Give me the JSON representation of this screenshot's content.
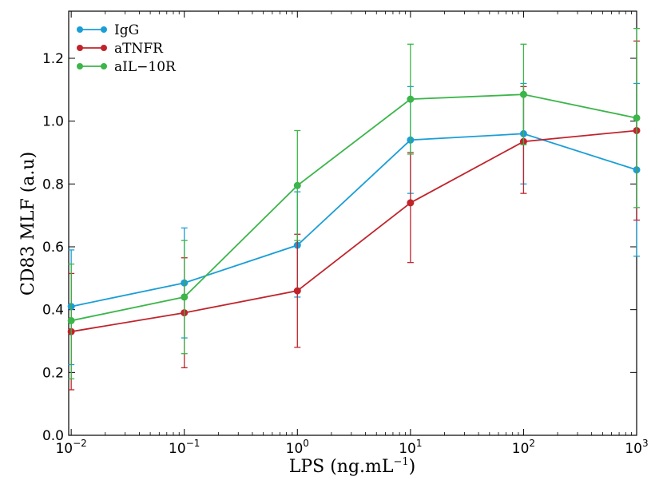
{
  "chart_data": {
    "type": "line",
    "title": "",
    "xlabel_base": "LPS (ng.mL",
    "xlabel_sup": "−1",
    "xlabel_end": ")",
    "ylabel": "CD83 MLF (a.u)",
    "xscale": "log",
    "xlim": [
      0.0095,
      1000
    ],
    "ylim": [
      0,
      1.35
    ],
    "yticks": [
      0.0,
      0.2,
      0.4,
      0.6,
      0.8,
      1.0,
      1.2
    ],
    "ytick_labels": [
      "0.0",
      "0.2",
      "0.4",
      "0.6",
      "0.8",
      "1.0",
      "1.2"
    ],
    "xticks": [
      0.01,
      0.1,
      1,
      10,
      100,
      1000
    ],
    "xtick_base": "10",
    "xtick_exponents": [
      "−2",
      "−1",
      "0",
      "1",
      "2",
      "3"
    ],
    "legend_position": "top-left",
    "x": [
      0.01,
      0.1,
      1,
      10,
      100,
      1000
    ],
    "series": [
      {
        "name": "IgG",
        "color": "#1a9ed6",
        "values": [
          0.41,
          0.485,
          0.605,
          0.94,
          0.96,
          0.845
        ],
        "err_low": [
          0.185,
          0.175,
          0.165,
          0.17,
          0.16,
          0.275
        ],
        "err_high": [
          0.18,
          0.175,
          0.17,
          0.17,
          0.16,
          0.275
        ]
      },
      {
        "name": "aTNFR",
        "color": "#c0242b",
        "values": [
          0.33,
          0.39,
          0.46,
          0.74,
          0.935,
          0.97
        ],
        "err_low": [
          0.185,
          0.175,
          0.18,
          0.19,
          0.165,
          0.285
        ],
        "err_high": [
          0.185,
          0.175,
          0.18,
          0.16,
          0.175,
          0.285
        ]
      },
      {
        "name": "aIL−10R",
        "color": "#3cb54a",
        "values": [
          0.365,
          0.44,
          0.795,
          1.07,
          1.085,
          1.01
        ],
        "err_low": [
          0.185,
          0.18,
          0.175,
          0.175,
          0.16,
          0.285
        ],
        "err_high": [
          0.18,
          0.18,
          0.175,
          0.175,
          0.16,
          0.285
        ]
      }
    ]
  }
}
